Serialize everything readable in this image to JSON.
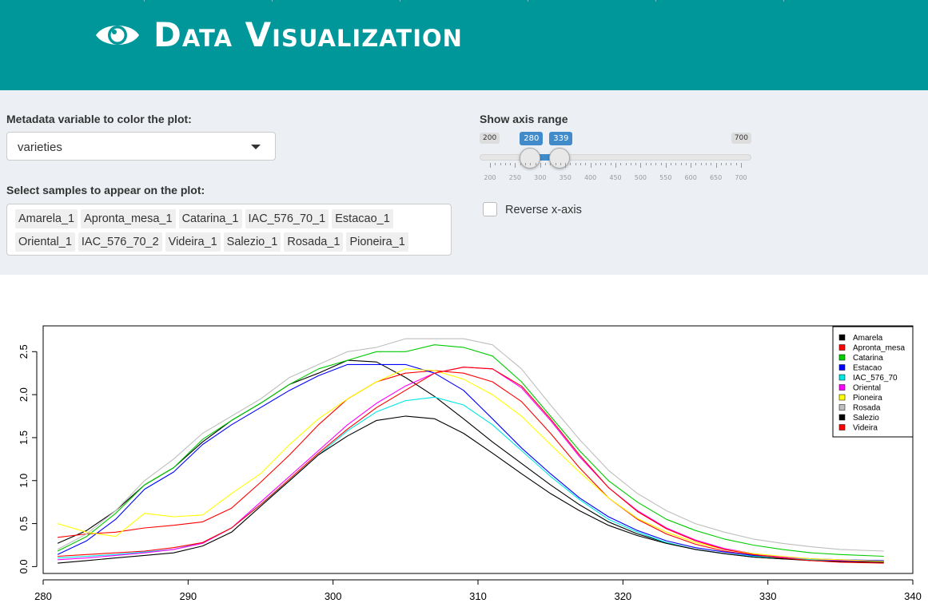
{
  "header": {
    "title": "Data Visualization",
    "icon": "eye-icon",
    "color": "#00979a"
  },
  "controls": {
    "color_label": "Metadata variable to color the plot:",
    "color_value": "varieties",
    "samples_label": "Select samples to appear on the plot:",
    "samples": [
      "Amarela_1",
      "Apronta_mesa_1",
      "Catarina_1",
      "IAC_576_70_1",
      "Estacao_1",
      "Oriental_1",
      "IAC_576_70_2",
      "Videira_1",
      "Salezio_1",
      "Rosada_1",
      "Pioneira_1"
    ],
    "axis_label": "Show axis range",
    "slider": {
      "min": 200,
      "max": 700,
      "from": 280,
      "to": 339,
      "ticks": [
        "200",
        "250",
        "300",
        "350",
        "400",
        "450",
        "500",
        "550",
        "600",
        "650",
        "700"
      ]
    },
    "reverse_label": "Reverse x-axis",
    "reverse_checked": false
  },
  "chart_data": {
    "type": "line",
    "x_ticks": [
      280,
      290,
      300,
      310,
      320,
      330,
      340
    ],
    "y_ticks": [
      "0.0",
      "0.5",
      "1.0",
      "1.5",
      "2.0",
      "2.5"
    ],
    "xlim": [
      280,
      340
    ],
    "ylim": [
      -0.08,
      2.8
    ],
    "x": [
      281,
      283,
      285,
      287,
      289,
      291,
      293,
      295,
      297,
      299,
      301,
      303,
      305,
      307,
      309,
      311,
      313,
      315,
      317,
      319,
      321,
      323,
      325,
      327,
      329,
      331,
      333,
      335,
      338
    ],
    "legend_position": "top-right",
    "series": [
      {
        "name": "Amarela",
        "color": "#000000",
        "values": [
          0.27,
          0.42,
          0.65,
          0.95,
          1.15,
          1.45,
          1.7,
          1.9,
          2.12,
          2.25,
          2.4,
          2.38,
          2.2,
          1.98,
          1.72,
          1.45,
          1.2,
          0.95,
          0.72,
          0.52,
          0.38,
          0.28,
          0.2,
          0.15,
          0.11,
          0.09,
          0.08,
          0.07,
          0.06
        ]
      },
      {
        "name": "Apronta_mesa",
        "color": "#ff0000",
        "values": [
          0.34,
          0.38,
          0.4,
          0.45,
          0.48,
          0.52,
          0.68,
          0.98,
          1.3,
          1.65,
          1.95,
          2.15,
          2.25,
          2.28,
          2.25,
          2.15,
          1.92,
          1.55,
          1.15,
          0.8,
          0.55,
          0.38,
          0.26,
          0.18,
          0.13,
          0.1,
          0.08,
          0.07,
          0.06
        ]
      },
      {
        "name": "Catarina",
        "color": "#00cc00",
        "values": [
          0.18,
          0.35,
          0.62,
          0.95,
          1.15,
          1.48,
          1.7,
          1.9,
          2.12,
          2.3,
          2.4,
          2.5,
          2.5,
          2.58,
          2.55,
          2.45,
          2.15,
          1.75,
          1.35,
          1.0,
          0.75,
          0.55,
          0.42,
          0.32,
          0.25,
          0.2,
          0.16,
          0.14,
          0.12
        ]
      },
      {
        "name": "Estacao",
        "color": "#0000ff",
        "values": [
          0.14,
          0.3,
          0.55,
          0.9,
          1.1,
          1.42,
          1.65,
          1.85,
          2.05,
          2.22,
          2.35,
          2.35,
          2.35,
          2.25,
          2.05,
          1.72,
          1.38,
          1.08,
          0.8,
          0.58,
          0.42,
          0.3,
          0.22,
          0.17,
          0.13,
          0.11,
          0.09,
          0.08,
          0.07
        ]
      },
      {
        "name": "IAC_576_70",
        "color": "#00e5e5",
        "values": [
          0.1,
          0.12,
          0.14,
          0.17,
          0.2,
          0.28,
          0.45,
          0.72,
          1.0,
          1.3,
          1.58,
          1.8,
          1.93,
          1.97,
          1.88,
          1.65,
          1.35,
          1.05,
          0.78,
          0.55,
          0.4,
          0.28,
          0.2,
          0.15,
          0.12,
          0.1,
          0.08,
          0.07,
          0.06
        ]
      },
      {
        "name": "Oriental",
        "color": "#ff00ff",
        "values": [
          0.08,
          0.1,
          0.13,
          0.16,
          0.2,
          0.27,
          0.45,
          0.75,
          1.05,
          1.35,
          1.65,
          1.9,
          2.1,
          2.25,
          2.32,
          2.3,
          2.08,
          1.7,
          1.28,
          0.92,
          0.65,
          0.45,
          0.31,
          0.21,
          0.15,
          0.11,
          0.09,
          0.07,
          0.06
        ]
      },
      {
        "name": "Pioneira",
        "color": "#ffff00",
        "values": [
          0.5,
          0.4,
          0.35,
          0.62,
          0.58,
          0.6,
          0.85,
          1.08,
          1.42,
          1.72,
          1.95,
          2.15,
          2.3,
          2.28,
          2.18,
          2.0,
          1.75,
          1.42,
          1.1,
          0.8,
          0.56,
          0.4,
          0.28,
          0.2,
          0.15,
          0.12,
          0.09,
          0.08,
          0.06
        ]
      },
      {
        "name": "Rosada",
        "color": "#bebebe",
        "values": [
          0.2,
          0.38,
          0.65,
          1.0,
          1.25,
          1.55,
          1.75,
          1.95,
          2.2,
          2.35,
          2.5,
          2.55,
          2.65,
          2.65,
          2.65,
          2.58,
          2.3,
          1.88,
          1.48,
          1.12,
          0.85,
          0.65,
          0.5,
          0.4,
          0.32,
          0.27,
          0.23,
          0.2,
          0.18
        ]
      },
      {
        "name": "Salezio",
        "color": "#000000",
        "values": [
          0.04,
          0.07,
          0.1,
          0.13,
          0.16,
          0.24,
          0.4,
          0.7,
          1.0,
          1.3,
          1.52,
          1.7,
          1.75,
          1.72,
          1.55,
          1.32,
          1.08,
          0.85,
          0.65,
          0.48,
          0.36,
          0.27,
          0.2,
          0.15,
          0.11,
          0.09,
          0.07,
          0.06,
          0.05
        ]
      },
      {
        "name": "Videira",
        "color": "#ff0000",
        "values": [
          0.12,
          0.14,
          0.16,
          0.18,
          0.22,
          0.28,
          0.45,
          0.72,
          1.02,
          1.32,
          1.6,
          1.85,
          2.05,
          2.25,
          2.32,
          2.3,
          2.1,
          1.72,
          1.3,
          0.92,
          0.64,
          0.44,
          0.3,
          0.2,
          0.14,
          0.1,
          0.07,
          0.05,
          0.04
        ]
      }
    ]
  }
}
